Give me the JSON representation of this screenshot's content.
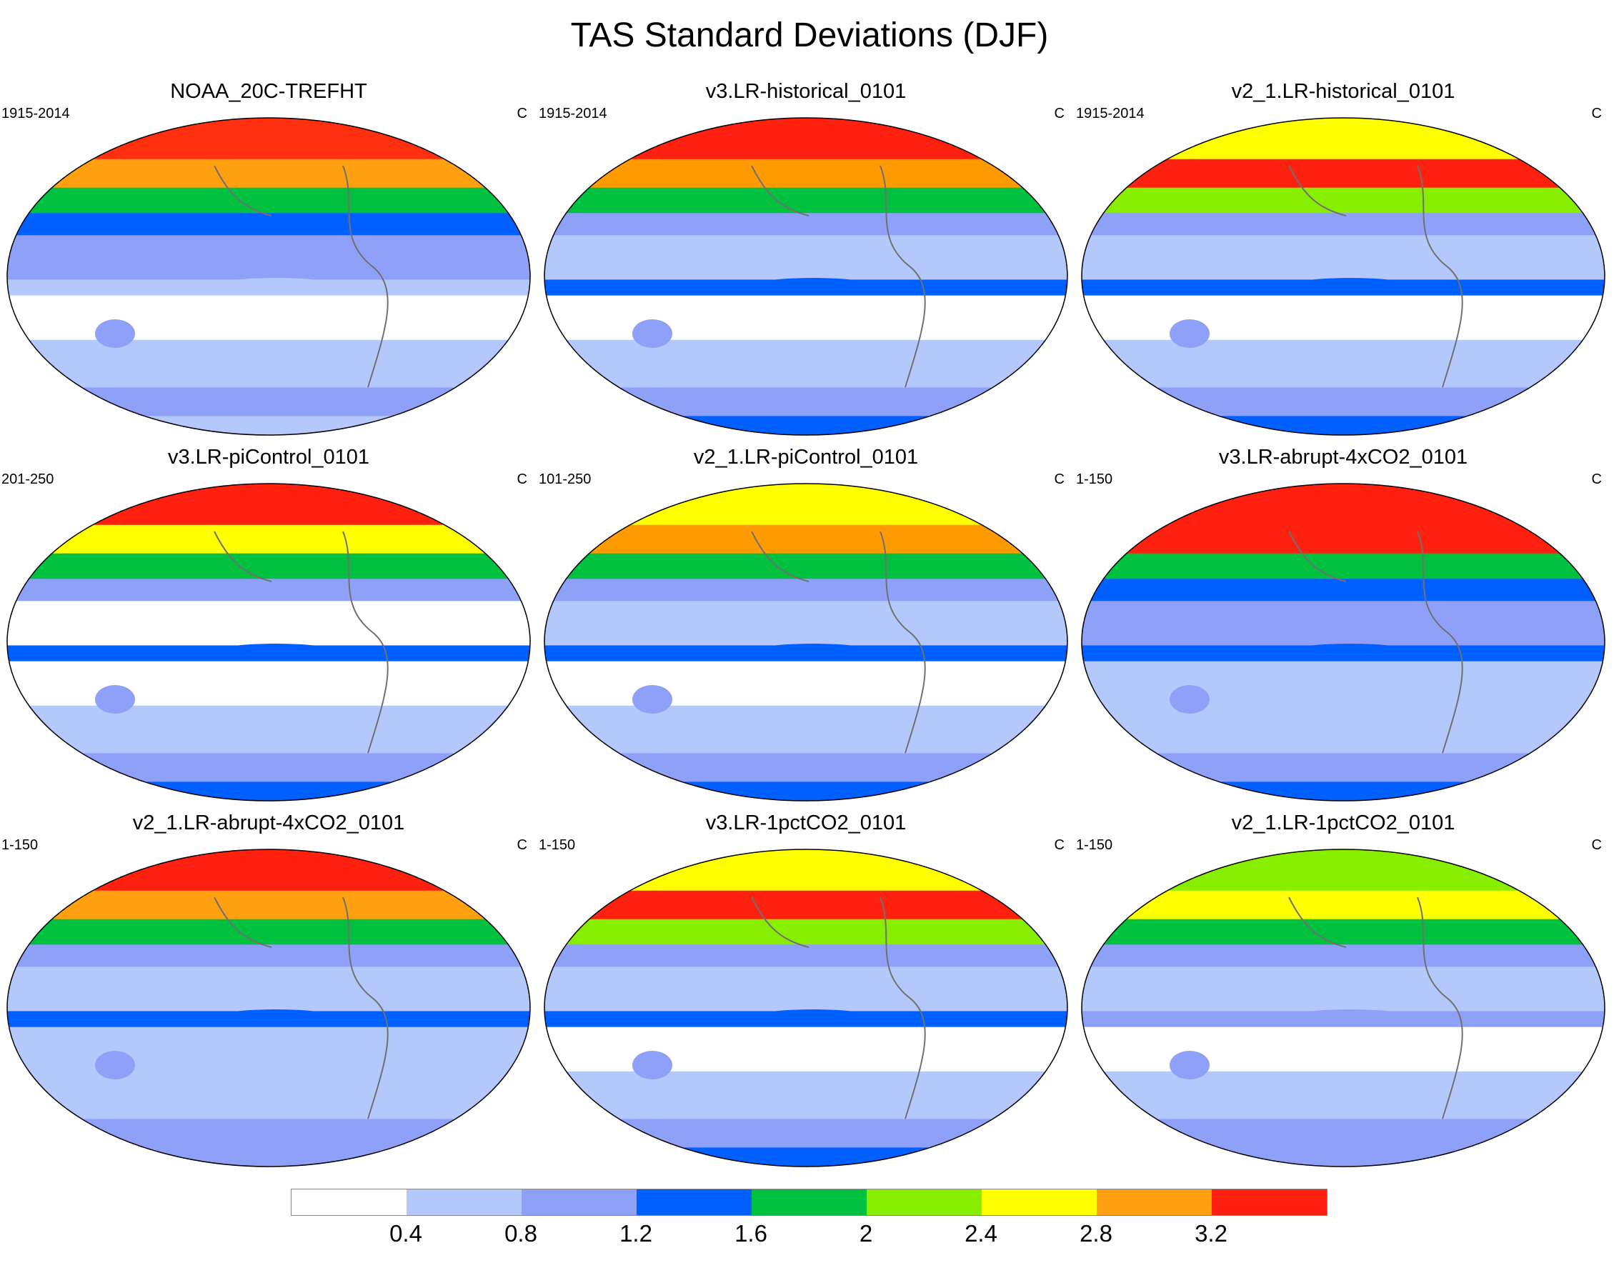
{
  "title": "TAS Standard Deviations (DJF)",
  "panels": [
    {
      "title": "NOAA_20C-TREFHT",
      "period": "1915-2014",
      "unit": "C",
      "bands": [
        "#ff3010",
        "#ffa010",
        "#00c040",
        "#0060ff",
        "#8ea0f7",
        "#b4c8fb",
        "#ffffff",
        "#b4c8fb",
        "#8ea0f7",
        "#b4c8fb"
      ]
    },
    {
      "title": "v3.LR-historical_0101",
      "period": "1915-2014",
      "unit": "C",
      "bands": [
        "#ff2010",
        "#ff9a00",
        "#00c040",
        "#8ea0f7",
        "#b4c8fb",
        "#0060ff",
        "#ffffff",
        "#b4c8fb",
        "#8ea0f7",
        "#0060ff"
      ]
    },
    {
      "title": "v2_1.LR-historical_0101",
      "period": "1915-2014",
      "unit": "C",
      "bands": [
        "#ffff00",
        "#ff2010",
        "#88ee00",
        "#8ea0f7",
        "#b4c8fb",
        "#0060ff",
        "#ffffff",
        "#b4c8fb",
        "#8ea0f7",
        "#0060ff"
      ]
    },
    {
      "title": "v3.LR-piControl_0101",
      "period": "201-250",
      "unit": "C",
      "bands": [
        "#ff2010",
        "#ffff00",
        "#00c040",
        "#8ea0f7",
        "#ffffff",
        "#0060ff",
        "#ffffff",
        "#b4c8fb",
        "#8ea0f7",
        "#0060ff"
      ]
    },
    {
      "title": "v2_1.LR-piControl_0101",
      "period": "101-250",
      "unit": "C",
      "bands": [
        "#ffff00",
        "#ff9a00",
        "#00c040",
        "#8ea0f7",
        "#b4c8fb",
        "#0060ff",
        "#ffffff",
        "#b4c8fb",
        "#8ea0f7",
        "#0060ff"
      ]
    },
    {
      "title": "v3.LR-abrupt-4xCO2_0101",
      "period": "1-150",
      "unit": "C",
      "bands": [
        "#ff2010",
        "#ff2010",
        "#00c040",
        "#0060ff",
        "#8ea0f7",
        "#0060ff",
        "#b4c8fb",
        "#b4c8fb",
        "#8ea0f7",
        "#0060ff"
      ]
    },
    {
      "title": "v2_1.LR-abrupt-4xCO2_0101",
      "period": "1-150",
      "unit": "C",
      "bands": [
        "#ff2010",
        "#ffa010",
        "#00c040",
        "#8ea0f7",
        "#b4c8fb",
        "#0060ff",
        "#b4c8fb",
        "#b4c8fb",
        "#8ea0f7",
        "#8ea0f7"
      ]
    },
    {
      "title": "v3.LR-1pctCO2_0101",
      "period": "1-150",
      "unit": "C",
      "bands": [
        "#ffff00",
        "#ff2010",
        "#88ee00",
        "#8ea0f7",
        "#b4c8fb",
        "#0060ff",
        "#ffffff",
        "#b4c8fb",
        "#8ea0f7",
        "#0060ff"
      ]
    },
    {
      "title": "v2_1.LR-1pctCO2_0101",
      "period": "1-150",
      "unit": "C",
      "bands": [
        "#88ee00",
        "#ffff00",
        "#00c040",
        "#8ea0f7",
        "#b4c8fb",
        "#8ea0f7",
        "#ffffff",
        "#b4c8fb",
        "#8ea0f7",
        "#8ea0f7"
      ]
    }
  ],
  "colorbar": {
    "colors": [
      "#ffffff",
      "#b4c8fb",
      "#8ea0f7",
      "#0060ff",
      "#00c040",
      "#88ee00",
      "#ffff00",
      "#ffa010",
      "#ff2010"
    ],
    "ticks": [
      "0.4",
      "0.8",
      "1.2",
      "1.6",
      "2",
      "2.4",
      "2.8",
      "3.2"
    ]
  }
}
